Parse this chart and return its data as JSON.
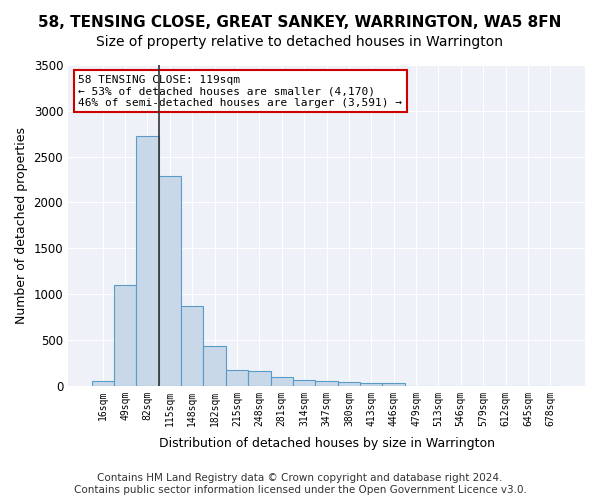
{
  "title": "58, TENSING CLOSE, GREAT SANKEY, WARRINGTON, WA5 8FN",
  "subtitle": "Size of property relative to detached houses in Warrington",
  "xlabel": "Distribution of detached houses by size in Warrington",
  "ylabel": "Number of detached properties",
  "categories": [
    "16sqm",
    "49sqm",
    "82sqm",
    "115sqm",
    "148sqm",
    "182sqm",
    "215sqm",
    "248sqm",
    "281sqm",
    "314sqm",
    "347sqm",
    "380sqm",
    "413sqm",
    "446sqm",
    "479sqm",
    "513sqm",
    "546sqm",
    "579sqm",
    "612sqm",
    "645sqm",
    "678sqm"
  ],
  "values": [
    50,
    1100,
    2730,
    2290,
    870,
    430,
    170,
    165,
    95,
    65,
    55,
    40,
    35,
    25,
    0,
    0,
    0,
    0,
    0,
    0,
    0
  ],
  "bar_color": "#c8d8e8",
  "bar_edge_color": "#5a9ac8",
  "highlight_index": 3,
  "highlight_line_color": "#333333",
  "annotation_text": "58 TENSING CLOSE: 119sqm\n← 53% of detached houses are smaller (4,170)\n46% of semi-detached houses are larger (3,591) →",
  "annotation_box_color": "#ffffff",
  "annotation_box_edge_color": "#cc0000",
  "ylim": [
    0,
    3500
  ],
  "yticks": [
    0,
    500,
    1000,
    1500,
    2000,
    2500,
    3000,
    3500
  ],
  "background_color": "#eef2f8",
  "grid_color": "#ffffff",
  "title_fontsize": 11,
  "subtitle_fontsize": 10,
  "footer_text": "Contains HM Land Registry data © Crown copyright and database right 2024.\nContains public sector information licensed under the Open Government Licence v3.0.",
  "footer_fontsize": 7.5
}
